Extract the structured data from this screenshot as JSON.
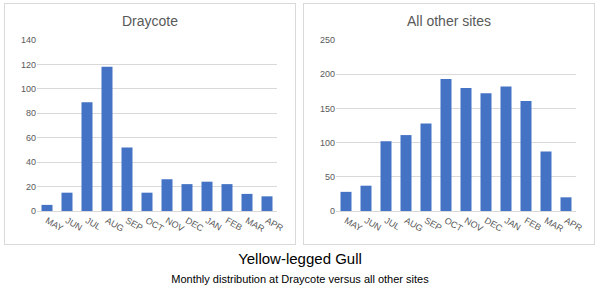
{
  "title": "Yellow-legged Gull",
  "subtitle": "Monthly distribution at Draycote versus all other sites",
  "chart_data": [
    {
      "type": "bar",
      "title": "Draycote",
      "categories": [
        "MAY",
        "JUN",
        "JUL",
        "AUG",
        "SEP",
        "OCT",
        "NOV",
        "DEC",
        "JAN",
        "FEB",
        "MAR",
        "APR"
      ],
      "values": [
        5,
        15,
        89,
        118,
        52,
        15,
        26,
        22,
        24,
        22,
        14,
        12
      ],
      "color": "#4472c4",
      "ylim": [
        0,
        140
      ],
      "yticks": [
        0,
        20,
        40,
        60,
        80,
        100,
        120,
        140
      ],
      "grid": true
    },
    {
      "type": "bar",
      "title": "All other sites",
      "categories": [
        "MAY",
        "JUN",
        "JUL",
        "AUG",
        "SEP",
        "OCT",
        "NOV",
        "DEC",
        "JAN",
        "FEB",
        "MAR",
        "APR"
      ],
      "values": [
        28,
        37,
        102,
        111,
        128,
        193,
        180,
        172,
        182,
        161,
        87,
        20
      ],
      "color": "#4472c4",
      "ylim": [
        0,
        250
      ],
      "yticks": [
        0,
        50,
        100,
        150,
        200,
        250
      ],
      "grid": true
    }
  ]
}
